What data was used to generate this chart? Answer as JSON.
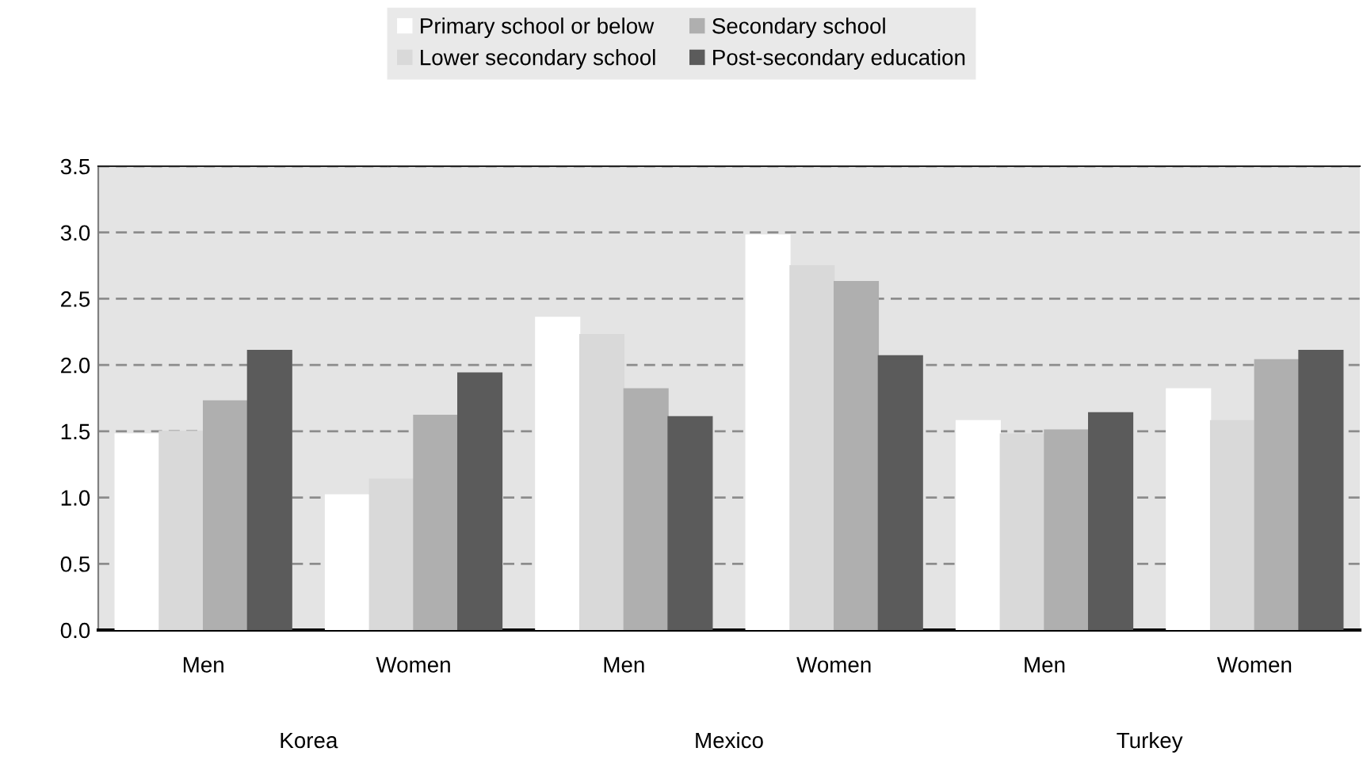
{
  "chart_data": {
    "type": "bar",
    "categories": [
      "Men",
      "Women",
      "Men",
      "Women",
      "Men",
      "Women"
    ],
    "series": [
      {
        "name": "Primary school or below",
        "color": "#ffffff",
        "values": [
          1.48,
          1.02,
          2.36,
          2.98,
          1.58,
          1.82
        ]
      },
      {
        "name": "Lower secondary school",
        "color": "#d9d9d9",
        "values": [
          1.5,
          1.14,
          2.23,
          2.75,
          1.48,
          1.58
        ]
      },
      {
        "name": "Secondary school",
        "color": "#afafaf",
        "values": [
          1.73,
          1.62,
          1.82,
          2.63,
          1.51,
          2.04
        ]
      },
      {
        "name": "Post-secondary education",
        "color": "#5b5b5b",
        "values": [
          2.11,
          1.94,
          1.61,
          2.07,
          1.64,
          2.11
        ]
      }
    ],
    "annotations": [
      "Korea",
      "Mexico",
      "Turkey"
    ],
    "ylim": [
      0,
      3.5
    ],
    "yticks": [
      {
        "value": 0,
        "label": "0.0"
      },
      {
        "value": 0.5,
        "label": "0.5"
      },
      {
        "value": 1,
        "label": "1.0"
      },
      {
        "value": 1.5,
        "label": "1.5"
      },
      {
        "value": 2,
        "label": "2.0"
      },
      {
        "value": 2.5,
        "label": "2.5"
      },
      {
        "value": 3,
        "label": "3.0"
      },
      {
        "value": 3.5,
        "label": "3.5"
      }
    ],
    "grid": "y",
    "legend": "top"
  }
}
